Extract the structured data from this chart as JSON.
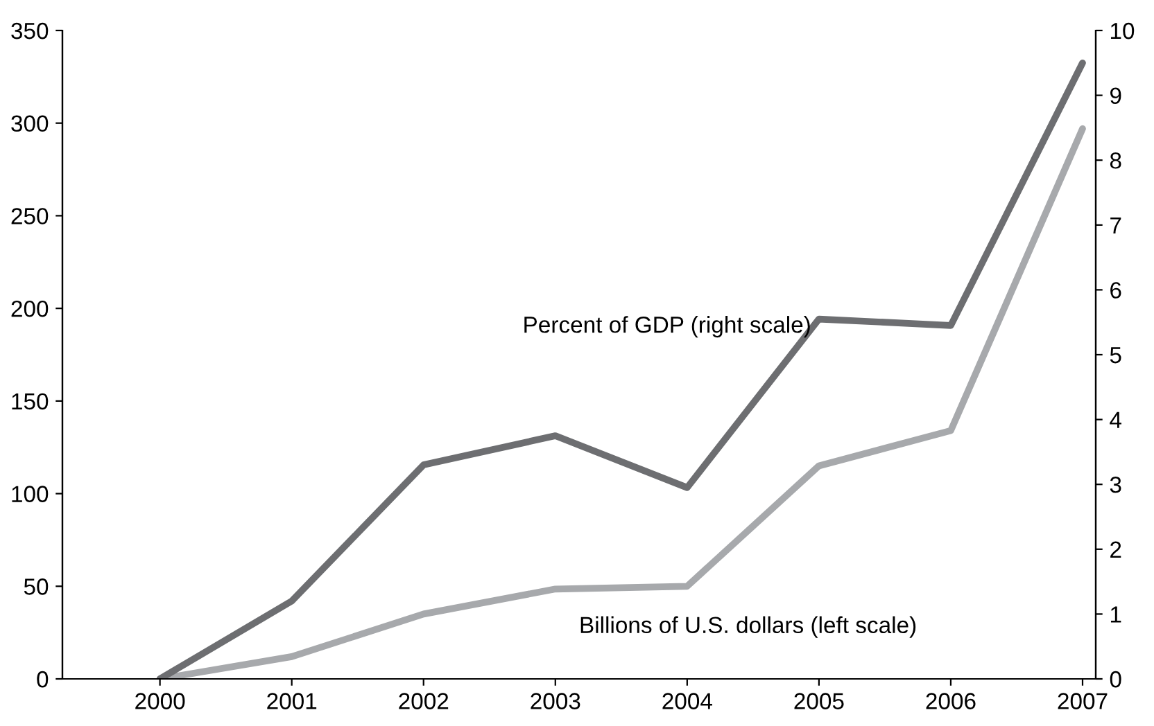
{
  "chart_data": {
    "type": "line",
    "x": [
      2000,
      2001,
      2002,
      2003,
      2004,
      2005,
      2006,
      2007
    ],
    "series": [
      {
        "name": "Percent of GDP (right scale)",
        "color": "#6d6e71",
        "axis": "y2",
        "values": [
          0,
          1.2,
          3.3,
          3.75,
          2.95,
          5.55,
          5.45,
          9.5
        ]
      },
      {
        "name": "Billions of U.S. dollars (left scale)",
        "color": "#a7a9ac",
        "axis": "y",
        "values": [
          0,
          12,
          35,
          48.5,
          50,
          115,
          134,
          297
        ]
      }
    ],
    "xlim": [
      1999.26,
      2007.1
    ],
    "xticks": [
      2000,
      2001,
      2002,
      2003,
      2004,
      2005,
      2006,
      2007
    ],
    "ylim": [
      0,
      350
    ],
    "yticks": [
      0,
      50,
      100,
      150,
      200,
      250,
      300,
      350
    ],
    "y2lim": [
      0,
      10
    ],
    "y2ticks": [
      0,
      1,
      2,
      3,
      4,
      5,
      6,
      7,
      8,
      9,
      10
    ],
    "grid": false,
    "legend": false,
    "marker": "none",
    "line_style": "solid"
  }
}
